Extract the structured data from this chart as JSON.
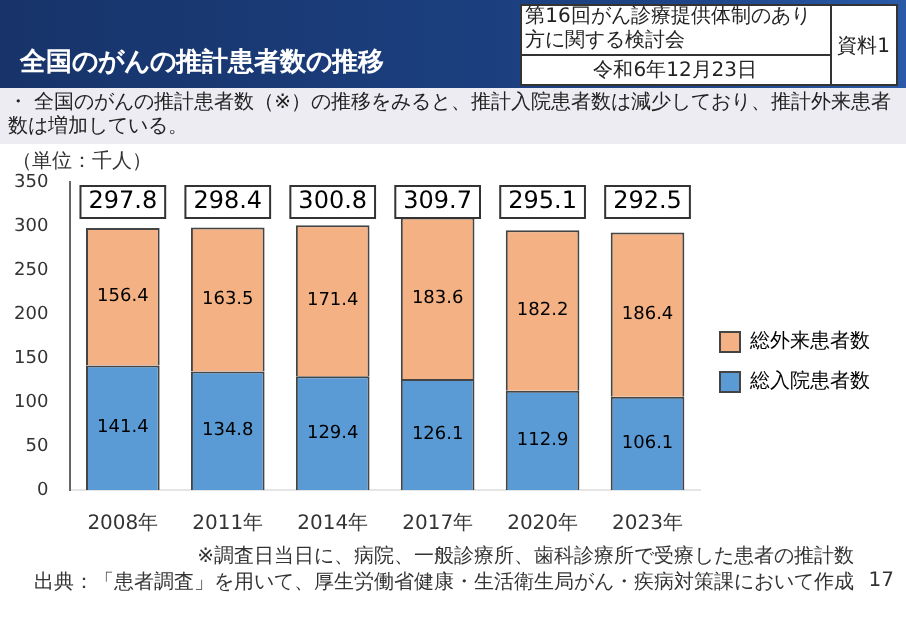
{
  "chart_data": {
    "type": "bar",
    "title": "全国のがんの推計患者数の推移",
    "subtitle": "・ 全国のがんの推計患者数（※）の推移をみると、推計入院患者数は減少しており、推計外来患者数は増加している。",
    "ylabel": "（単位：千人）",
    "categories": [
      "2008年",
      "2011年",
      "2014年",
      "2017年",
      "2020年",
      "2023年"
    ],
    "series": [
      {
        "name": "総入院患者数",
        "color": "#5b9bd5",
        "values": [
          141.4,
          134.8,
          129.4,
          126.1,
          112.9,
          106.1
        ]
      },
      {
        "name": "総外来患者数",
        "color": "#f4b183",
        "values": [
          156.4,
          163.5,
          171.4,
          183.6,
          182.2,
          186.4
        ]
      }
    ],
    "stacked": true,
    "data_labels": true,
    "totals": [
      "297.8",
      "298.4",
      "300.8",
      "309.7",
      "295.1",
      "292.5"
    ],
    "ylim": [
      0,
      350
    ],
    "yticks": [
      0,
      50,
      100,
      150,
      200,
      250,
      300,
      350
    ],
    "grid": false,
    "legend": "right",
    "annotations": [
      "第16回がん診療提供体制のあり方に関する検討会",
      "令和6年12月23日",
      "資料1",
      "※調査日当日に、病院、一般診療所、歯科診療所で受療した患者の推計数",
      "出典：「患者調査」を用いて、厚生労働省健康・生活衛生局がん・疾病対策課において作成",
      "17"
    ]
  }
}
